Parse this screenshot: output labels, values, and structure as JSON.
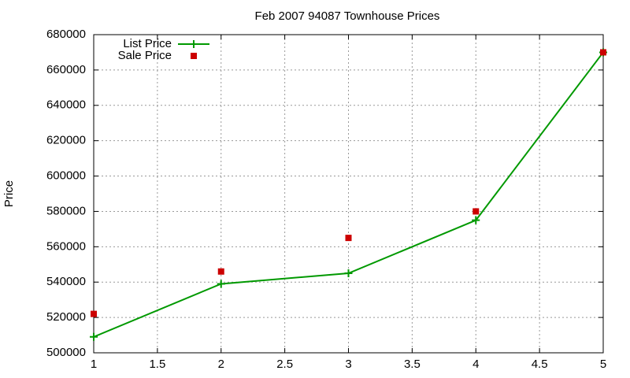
{
  "chart_data": {
    "type": "line",
    "title": "Feb 2007 94087 Townhouse Prices",
    "y_label": "Price",
    "x": [
      1,
      2,
      3,
      4,
      5
    ],
    "series": [
      {
        "name": "List Price",
        "color": "#009900",
        "mode": "lines+markers",
        "marker": "plus",
        "values": [
          509000,
          539000,
          545000,
          575000,
          670000
        ]
      },
      {
        "name": "Sale Price",
        "color": "#cc0000",
        "mode": "markers",
        "marker": "square",
        "values": [
          522000,
          546000,
          565000,
          580000,
          670000
        ]
      }
    ],
    "xlim": [
      1,
      5
    ],
    "xticks": [
      1,
      1.5,
      2,
      2.5,
      3,
      3.5,
      4,
      4.5,
      5
    ],
    "ylim": [
      500000,
      680000
    ],
    "yticks": [
      500000,
      520000,
      540000,
      560000,
      580000,
      600000,
      620000,
      640000,
      660000,
      680000
    ],
    "grid": true,
    "legend": "top-left"
  }
}
